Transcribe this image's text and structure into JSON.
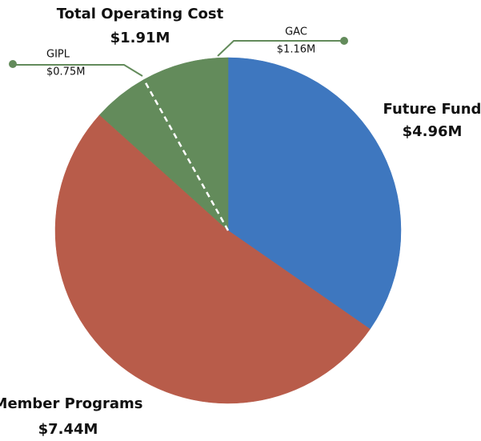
{
  "chart_data": {
    "type": "pie",
    "categories": [
      "Future Fund",
      "Member Programs",
      "GIPL",
      "GAC"
    ],
    "values": [
      4.96,
      7.44,
      0.75,
      1.16
    ],
    "value_labels": [
      "$4.96M",
      "$7.44M",
      "$0.75M",
      "$1.16M"
    ],
    "colors": [
      "#3e77bf",
      "#b85c4a",
      "#638b5b",
      "#638b5b"
    ],
    "annotations": [
      {
        "text": "Total Operating Cost"
      },
      {
        "text": "$1.91M"
      }
    ]
  }
}
